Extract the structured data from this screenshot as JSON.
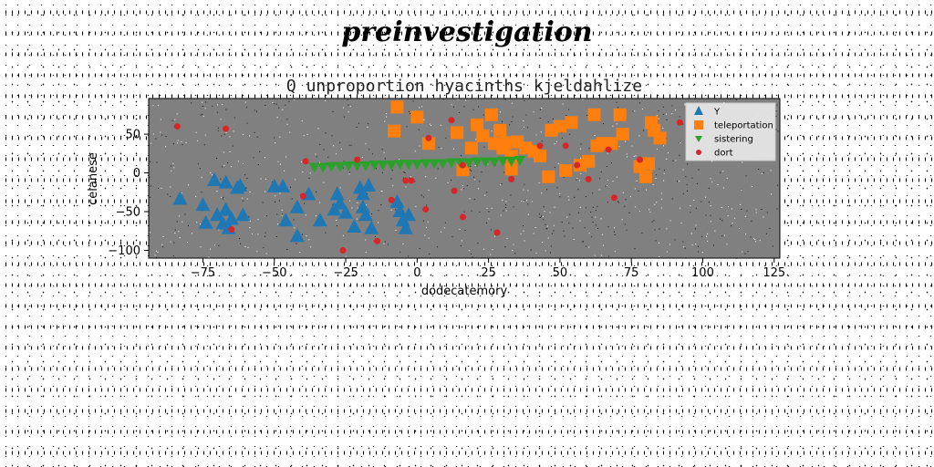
{
  "suptitle": "preinvestigation",
  "chart_data": {
    "type": "scatter",
    "title": "Q unproportion hyacinths kjeldahlize",
    "xlabel": "dodecatemory",
    "ylabel": "celanese",
    "xlim": [
      -94,
      127
    ],
    "ylim": [
      -110,
      96
    ],
    "xticks": [
      -75,
      -50,
      -25,
      0,
      25,
      50,
      75,
      100,
      125
    ],
    "xtick_labels": [
      "−75",
      "−50",
      "−25",
      "0",
      "25",
      "50",
      "75",
      "100",
      "125"
    ],
    "yticks": [
      50,
      0,
      -50,
      -100
    ],
    "ytick_labels": [
      "50",
      "0",
      "−50",
      "−100"
    ],
    "legend_position": "upper right",
    "series": [
      {
        "name": "Y",
        "marker": "triangle",
        "color": "#1f77b4",
        "points": [
          [
            -83,
            -34
          ],
          [
            -75,
            -42
          ],
          [
            -74,
            -65
          ],
          [
            -71,
            -10
          ],
          [
            -70,
            -55
          ],
          [
            -67,
            -13
          ],
          [
            -68,
            -66
          ],
          [
            -67,
            -48
          ],
          [
            -66,
            -72
          ],
          [
            -65,
            -60
          ],
          [
            -63,
            -20
          ],
          [
            -62,
            -17
          ],
          [
            -61,
            -55
          ],
          [
            -50,
            -18
          ],
          [
            -47,
            -18
          ],
          [
            -46,
            -62
          ],
          [
            -42,
            -45
          ],
          [
            -42,
            -82
          ],
          [
            -38,
            -28
          ],
          [
            -34,
            -62
          ],
          [
            -29,
            -48
          ],
          [
            -28,
            -28
          ],
          [
            -27,
            -40
          ],
          [
            -25,
            -52
          ],
          [
            -22,
            -70
          ],
          [
            -20,
            -20
          ],
          [
            -19,
            -28
          ],
          [
            -19,
            -45
          ],
          [
            -18,
            -55
          ],
          [
            -17,
            -17
          ],
          [
            -16,
            -72
          ],
          [
            -7,
            -38
          ],
          [
            -6,
            -50
          ],
          [
            -5,
            -62
          ],
          [
            -4,
            -72
          ],
          [
            -3,
            -55
          ]
        ]
      },
      {
        "name": "teleportation",
        "marker": "square",
        "color": "#ff7f0e",
        "points": [
          [
            -7,
            85
          ],
          [
            -8,
            54
          ],
          [
            0,
            72
          ],
          [
            4,
            38
          ],
          [
            14,
            52
          ],
          [
            16,
            4
          ],
          [
            19,
            32
          ],
          [
            21,
            62
          ],
          [
            23,
            48
          ],
          [
            26,
            75
          ],
          [
            27,
            38
          ],
          [
            29,
            55
          ],
          [
            30,
            32
          ],
          [
            31,
            39
          ],
          [
            33,
            22
          ],
          [
            33,
            5
          ],
          [
            35,
            40
          ],
          [
            38,
            32
          ],
          [
            41,
            28
          ],
          [
            43,
            22
          ],
          [
            46,
            -5
          ],
          [
            47,
            55
          ],
          [
            50,
            60
          ],
          [
            52,
            3
          ],
          [
            54,
            65
          ],
          [
            57,
            10
          ],
          [
            60,
            15
          ],
          [
            62,
            75
          ],
          [
            63,
            35
          ],
          [
            65,
            38
          ],
          [
            68,
            38
          ],
          [
            71,
            75
          ],
          [
            72,
            50
          ],
          [
            78,
            8
          ],
          [
            80,
            -5
          ],
          [
            81,
            12
          ],
          [
            82,
            65
          ],
          [
            83,
            55
          ],
          [
            85,
            45
          ]
        ]
      },
      {
        "name": "sistering",
        "marker": "triangle-down",
        "color": "#2ca02c",
        "points": [
          [
            -36,
            7
          ],
          [
            -33,
            7
          ],
          [
            -30,
            8
          ],
          [
            -27,
            8
          ],
          [
            -24,
            9
          ],
          [
            -21,
            9
          ],
          [
            -18,
            9
          ],
          [
            -15,
            10
          ],
          [
            -12,
            10
          ],
          [
            -9,
            10
          ],
          [
            -6,
            11
          ],
          [
            -3,
            11
          ],
          [
            0,
            11
          ],
          [
            3,
            12
          ],
          [
            6,
            12
          ],
          [
            9,
            12
          ],
          [
            12,
            13
          ],
          [
            15,
            13
          ],
          [
            18,
            13
          ],
          [
            21,
            14
          ],
          [
            24,
            14
          ],
          [
            27,
            14
          ],
          [
            30,
            15
          ],
          [
            33,
            15
          ],
          [
            36,
            16
          ]
        ]
      },
      {
        "name": "dort",
        "marker": "circle",
        "color": "#d62728",
        "points": [
          [
            -84,
            60
          ],
          [
            -67,
            57
          ],
          [
            -65,
            -73
          ],
          [
            -40,
            -30
          ],
          [
            -39,
            15
          ],
          [
            -26,
            -100
          ],
          [
            -21,
            17
          ],
          [
            -14,
            -88
          ],
          [
            -9,
            -35
          ],
          [
            -4,
            -10
          ],
          [
            -2,
            -10
          ],
          [
            3,
            -47
          ],
          [
            4,
            45
          ],
          [
            12,
            68
          ],
          [
            13,
            -23
          ],
          [
            16,
            -57
          ],
          [
            16,
            10
          ],
          [
            28,
            -77
          ],
          [
            33,
            -8
          ],
          [
            43,
            35
          ],
          [
            52,
            35
          ],
          [
            56,
            10
          ],
          [
            60,
            -8
          ],
          [
            67,
            30
          ],
          [
            69,
            -32
          ],
          [
            78,
            17
          ],
          [
            92,
            65
          ]
        ]
      }
    ]
  }
}
